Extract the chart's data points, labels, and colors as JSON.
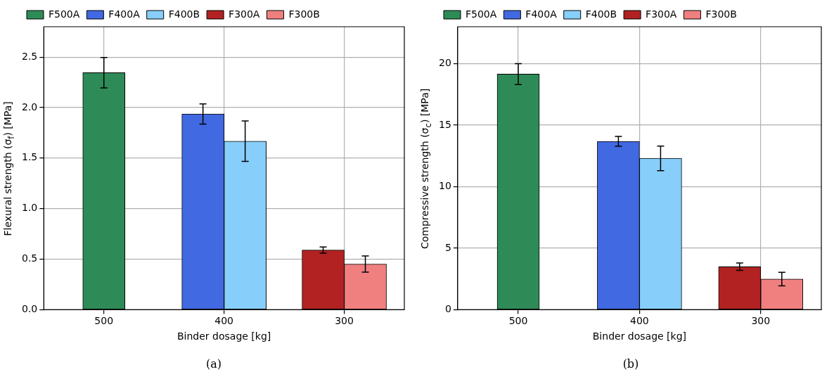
{
  "chart_data": [
    {
      "type": "bar",
      "categories": [
        "500",
        "400",
        "300"
      ],
      "xlabel": "Binder dosage [kg]",
      "ylabel": "Flexural strength (σ$_{f}$) [MPa]",
      "ylim": [
        0,
        2.8
      ],
      "yticks": [
        {
          "value": 0,
          "label": "0.0"
        },
        {
          "value": 0.5,
          "label": "0.5"
        },
        {
          "value": 1,
          "label": "1.0"
        },
        {
          "value": 1.5,
          "label": "1.5"
        },
        {
          "value": 2,
          "label": "2.0"
        },
        {
          "value": 2.5,
          "label": "2.5"
        }
      ],
      "grid": true,
      "legend": "top",
      "annotations": [
        "(a)"
      ],
      "series": [
        {
          "name": "F500A",
          "color": "#2e8b57",
          "values": [
            2.345,
            null,
            null
          ],
          "errors": [
            0.15,
            null,
            null
          ]
        },
        {
          "name": "F400A",
          "color": "#4169e1",
          "values": [
            null,
            1.937,
            null
          ],
          "errors": [
            null,
            0.1,
            null
          ]
        },
        {
          "name": "F400B",
          "color": "#87cefa",
          "values": [
            null,
            1.667,
            null
          ],
          "errors": [
            null,
            0.2,
            null
          ]
        },
        {
          "name": "F300A",
          "color": "#b22222",
          "values": [
            null,
            null,
            0.59
          ],
          "errors": [
            null,
            null,
            0.03
          ]
        },
        {
          "name": "F300B",
          "color": "#f08080",
          "values": [
            null,
            null,
            0.451
          ],
          "errors": [
            null,
            null,
            0.08
          ]
        }
      ]
    },
    {
      "type": "bar",
      "categories": [
        "500",
        "400",
        "300"
      ],
      "xlabel": "Binder dosage [kg]",
      "ylabel": "Compressive strength (σ$_{c}$) [MPa]",
      "ylim": [
        0,
        23
      ],
      "yticks": [
        0,
        5,
        10,
        15,
        20
      ],
      "grid": true,
      "legend": "top",
      "annotations": [
        "(b)"
      ],
      "series": [
        {
          "name": "F500A",
          "color": "#2e8b57",
          "values": [
            19.15,
            null,
            null
          ],
          "errors": [
            0.85,
            null,
            null
          ]
        },
        {
          "name": "F400A",
          "color": "#4169e1",
          "values": [
            null,
            13.68,
            null
          ],
          "errors": [
            null,
            0.4,
            null
          ]
        },
        {
          "name": "F400B",
          "color": "#87cefa",
          "values": [
            null,
            12.3,
            null
          ],
          "errors": [
            null,
            1.0,
            null
          ]
        },
        {
          "name": "F300A",
          "color": "#b22222",
          "values": [
            null,
            null,
            3.49
          ],
          "errors": [
            null,
            null,
            0.3
          ]
        },
        {
          "name": "F300B",
          "color": "#f08080",
          "values": [
            null,
            null,
            2.49
          ],
          "errors": [
            null,
            null,
            0.55
          ]
        }
      ]
    }
  ]
}
